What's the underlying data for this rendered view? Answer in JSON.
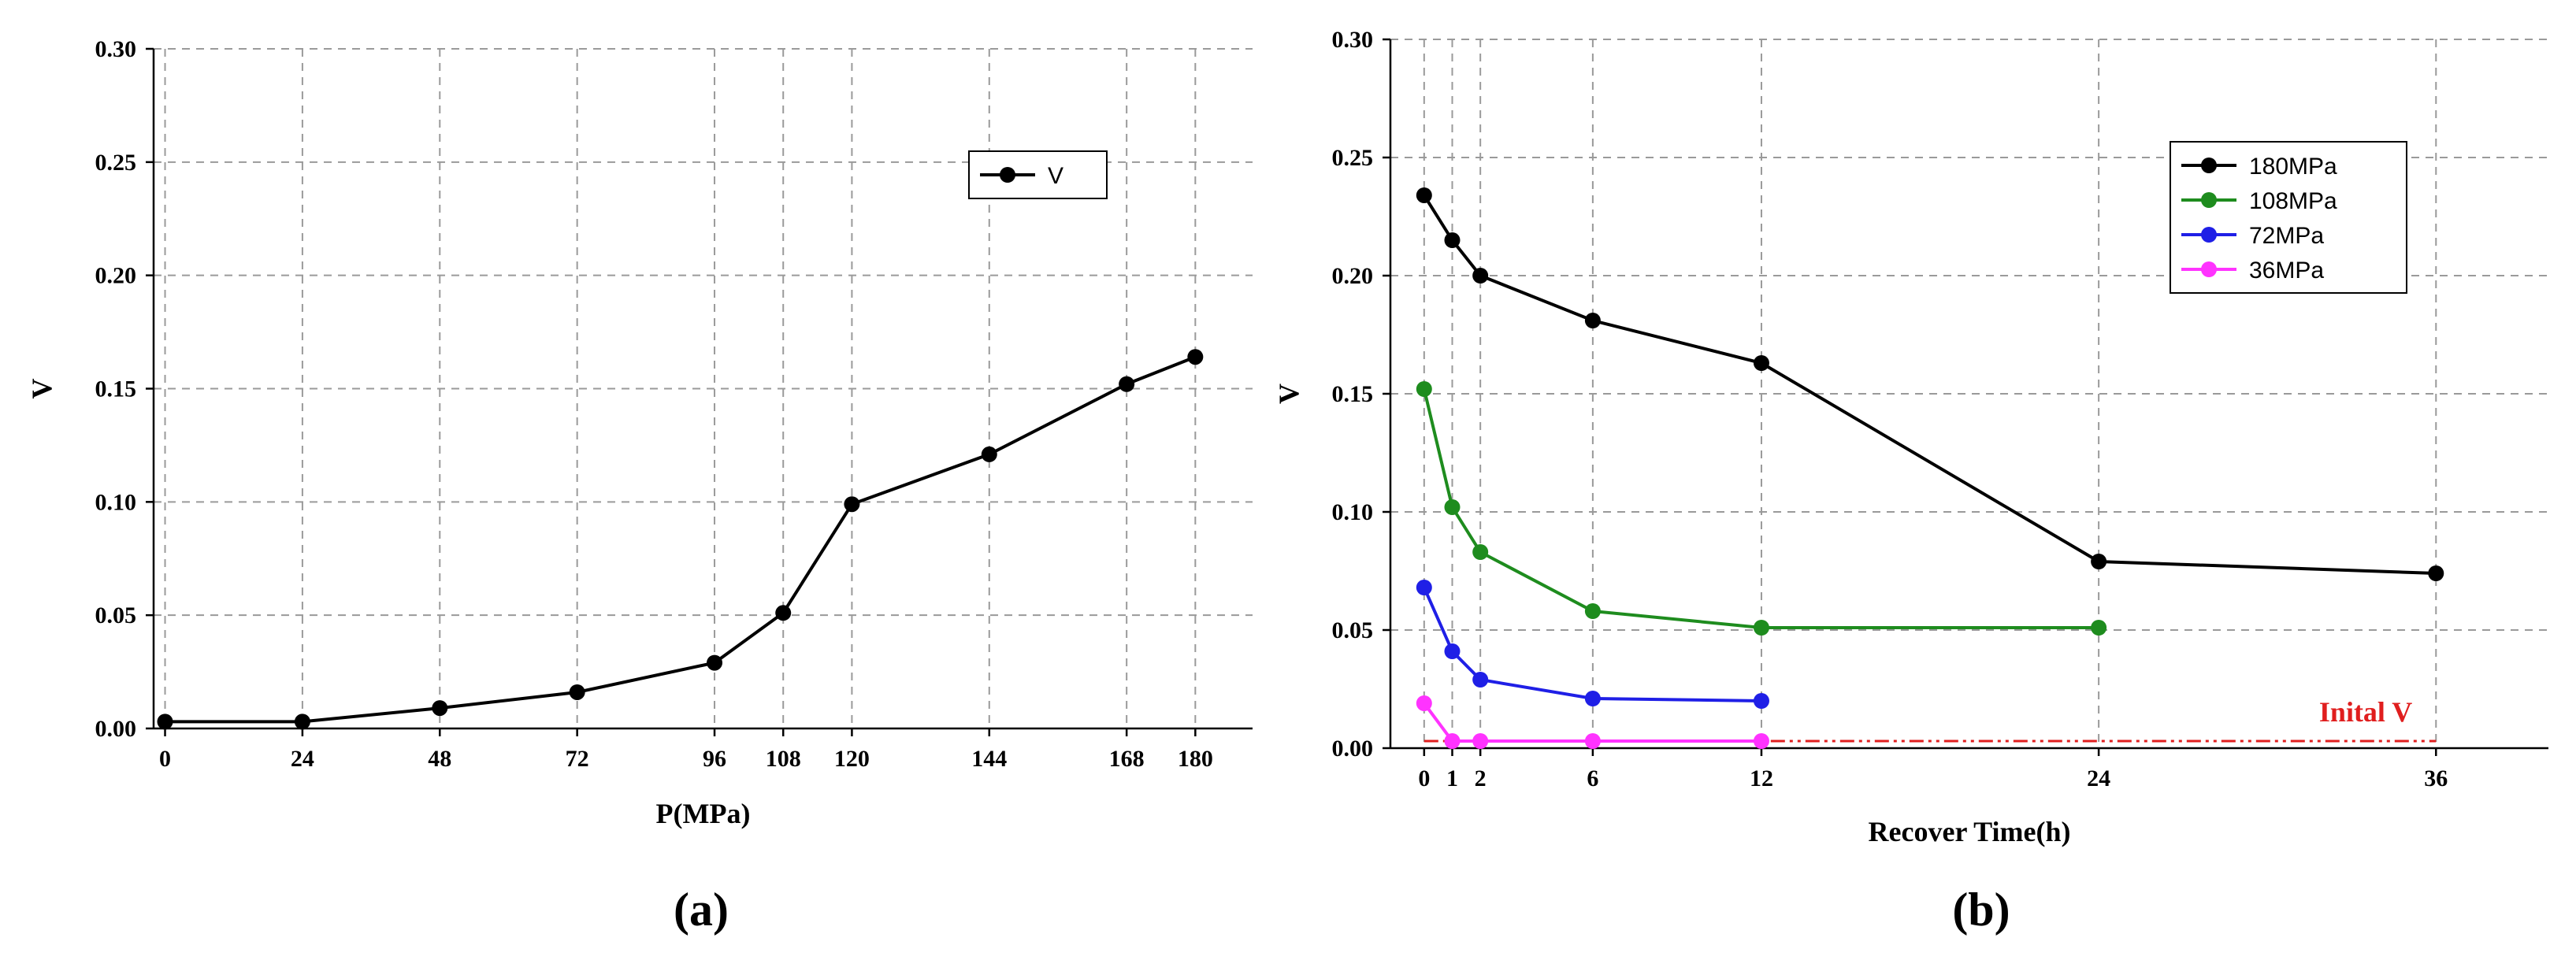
{
  "chart_data": [
    {
      "type": "line",
      "panel_label": "(a)",
      "xlabel": "P(MPa)",
      "ylabel": "V",
      "xlim": [
        -2,
        190
      ],
      "ylim": [
        0,
        0.3
      ],
      "xticks": [
        0,
        24,
        48,
        72,
        96,
        108,
        120,
        144,
        168,
        180
      ],
      "yticks": [
        0.0,
        0.05,
        0.1,
        0.15,
        0.2,
        0.25,
        0.3
      ],
      "grid": true,
      "legend_position": "top-right",
      "series": [
        {
          "name": "V",
          "color": "#000000",
          "x": [
            0,
            24,
            48,
            72,
            96,
            108,
            120,
            144,
            168,
            180
          ],
          "y": [
            0.003,
            0.003,
            0.009,
            0.016,
            0.029,
            0.051,
            0.099,
            0.121,
            0.152,
            0.164
          ]
        }
      ]
    },
    {
      "type": "line",
      "panel_label": "(b)",
      "xlabel": "Recover Time(h)",
      "ylabel": "V",
      "xlim": [
        -1.2,
        40
      ],
      "ylim": [
        0,
        0.3
      ],
      "xticks": [
        0,
        1,
        2,
        6,
        12,
        24,
        36
      ],
      "yticks": [
        0.0,
        0.05,
        0.1,
        0.15,
        0.2,
        0.25,
        0.3
      ],
      "grid": true,
      "legend_position": "top-right",
      "series": [
        {
          "name": "180MPa",
          "color": "#000000",
          "x": [
            0,
            1,
            2,
            6,
            12,
            24,
            36
          ],
          "y": [
            0.234,
            0.215,
            0.2,
            0.181,
            0.163,
            0.079,
            0.074
          ]
        },
        {
          "name": "108MPa",
          "color": "#1e8c1e",
          "x": [
            0,
            1,
            2,
            6,
            12,
            24
          ],
          "y": [
            0.152,
            0.102,
            0.083,
            0.058,
            0.051,
            0.051
          ]
        },
        {
          "name": "72MPa",
          "color": "#1f1fe6",
          "x": [
            0,
            1,
            2,
            6,
            12
          ],
          "y": [
            0.068,
            0.041,
            0.029,
            0.021,
            0.02
          ]
        },
        {
          "name": "36MPa",
          "color": "#ff33ff",
          "x": [
            0,
            1,
            2,
            6,
            12
          ],
          "y": [
            0.019,
            0.003,
            0.003,
            0.003,
            0.003
          ]
        }
      ],
      "reference_line": {
        "label": "Inital V",
        "y": 0.003,
        "color": "#e01e1e",
        "x_range": [
          0,
          36
        ]
      }
    }
  ]
}
